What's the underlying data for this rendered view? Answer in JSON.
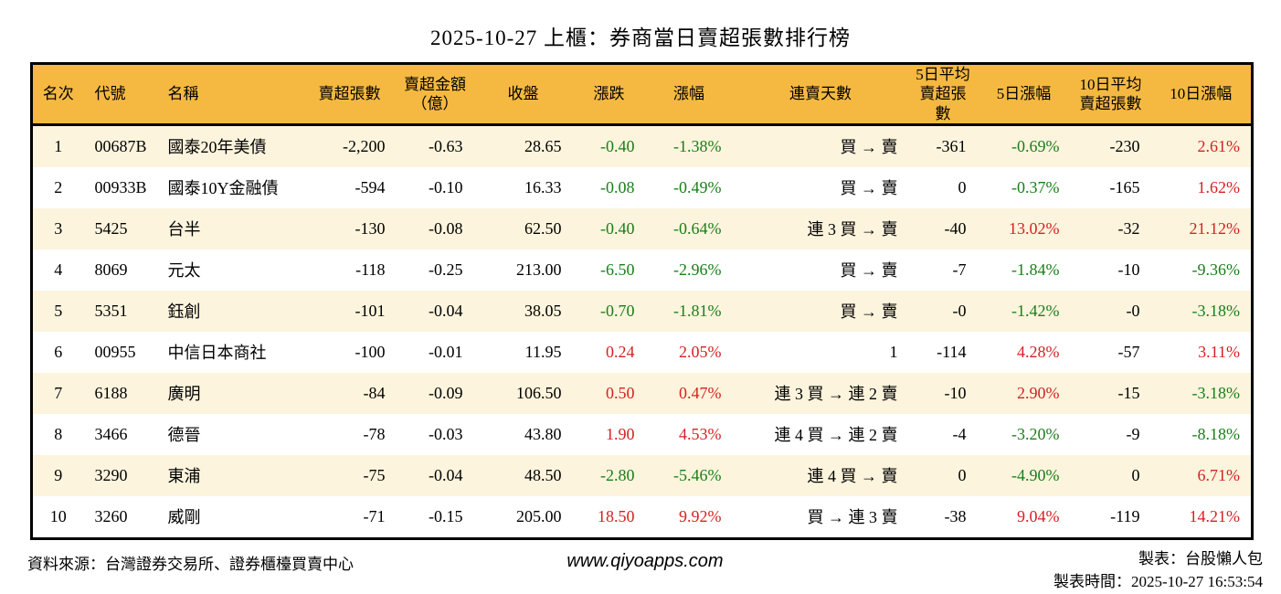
{
  "title": "2025-10-27 上櫃：券商當日賣超張數排行榜",
  "colors": {
    "header_background": "#f5b942",
    "row_stripe": "#fcf4dd",
    "row_plain": "#ffffff",
    "negative_text": "#1a7e1a",
    "positive_text": "#d42222",
    "border": "#000000"
  },
  "table": {
    "columns": [
      {
        "key": "rank",
        "label": "名次",
        "align": "center",
        "header_align": "center",
        "width": 57
      },
      {
        "key": "code",
        "label": "代號",
        "align": "left",
        "header_align": "left",
        "width": 80
      },
      {
        "key": "name",
        "label": "名稱",
        "align": "left",
        "header_align": "left",
        "width": 160
      },
      {
        "key": "sell_volume",
        "label": "賣超張數",
        "align": "right",
        "header_align": "center",
        "width": 102
      },
      {
        "key": "sell_amount",
        "label": "賣超金額\n（億）",
        "align": "right",
        "header_align": "center",
        "width": 85
      },
      {
        "key": "close",
        "label": "收盤",
        "align": "right",
        "header_align": "center",
        "width": 108
      },
      {
        "key": "change",
        "label": "漲跌",
        "align": "right",
        "header_align": "center",
        "width": 80,
        "tone": true
      },
      {
        "key": "change_pct",
        "label": "漲幅",
        "align": "right",
        "header_align": "center",
        "width": 95,
        "tone": true
      },
      {
        "key": "streak",
        "label": "連賣天數",
        "align": "right",
        "header_align": "center",
        "width": 193
      },
      {
        "key": "avg5",
        "label": "5日平均\n賣超張數",
        "align": "right",
        "header_align": "center",
        "width": 75
      },
      {
        "key": "pct5",
        "label": "5日漲幅",
        "align": "right",
        "header_align": "center",
        "width": 102,
        "tone": true
      },
      {
        "key": "avg10",
        "label": "10日平均\n賣超張數",
        "align": "right",
        "header_align": "center",
        "width": 88
      },
      {
        "key": "pct10",
        "label": "10日漲幅",
        "align": "right",
        "header_align": "center",
        "width": 111,
        "tone": true
      }
    ],
    "rows": [
      {
        "rank": "1",
        "code": "00687B",
        "name": "國泰20年美債",
        "sell_volume": "-2,200",
        "sell_amount": "-0.63",
        "close": "28.65",
        "change": "-0.40",
        "change_pct": "-1.38%",
        "streak": "買 → 賣",
        "avg5": "-361",
        "pct5": "-0.69%",
        "avg10": "-230",
        "pct10": "2.61%"
      },
      {
        "rank": "2",
        "code": "00933B",
        "name": "國泰10Y金融債",
        "sell_volume": "-594",
        "sell_amount": "-0.10",
        "close": "16.33",
        "change": "-0.08",
        "change_pct": "-0.49%",
        "streak": "買 → 賣",
        "avg5": "0",
        "pct5": "-0.37%",
        "avg10": "-165",
        "pct10": "1.62%"
      },
      {
        "rank": "3",
        "code": "5425",
        "name": "台半",
        "sell_volume": "-130",
        "sell_amount": "-0.08",
        "close": "62.50",
        "change": "-0.40",
        "change_pct": "-0.64%",
        "streak": "連 3 買 → 賣",
        "avg5": "-40",
        "pct5": "13.02%",
        "avg10": "-32",
        "pct10": "21.12%"
      },
      {
        "rank": "4",
        "code": "8069",
        "name": "元太",
        "sell_volume": "-118",
        "sell_amount": "-0.25",
        "close": "213.00",
        "change": "-6.50",
        "change_pct": "-2.96%",
        "streak": "買 → 賣",
        "avg5": "-7",
        "pct5": "-1.84%",
        "avg10": "-10",
        "pct10": "-9.36%"
      },
      {
        "rank": "5",
        "code": "5351",
        "name": "鈺創",
        "sell_volume": "-101",
        "sell_amount": "-0.04",
        "close": "38.05",
        "change": "-0.70",
        "change_pct": "-1.81%",
        "streak": "買 → 賣",
        "avg5": "-0",
        "pct5": "-1.42%",
        "avg10": "-0",
        "pct10": "-3.18%"
      },
      {
        "rank": "6",
        "code": "00955",
        "name": "中信日本商社",
        "sell_volume": "-100",
        "sell_amount": "-0.01",
        "close": "11.95",
        "change": "0.24",
        "change_pct": "2.05%",
        "streak": "1",
        "avg5": "-114",
        "pct5": "4.28%",
        "avg10": "-57",
        "pct10": "3.11%"
      },
      {
        "rank": "7",
        "code": "6188",
        "name": "廣明",
        "sell_volume": "-84",
        "sell_amount": "-0.09",
        "close": "106.50",
        "change": "0.50",
        "change_pct": "0.47%",
        "streak": "連 3 買 → 連 2 賣",
        "avg5": "-10",
        "pct5": "2.90%",
        "avg10": "-15",
        "pct10": "-3.18%"
      },
      {
        "rank": "8",
        "code": "3466",
        "name": "德晉",
        "sell_volume": "-78",
        "sell_amount": "-0.03",
        "close": "43.80",
        "change": "1.90",
        "change_pct": "4.53%",
        "streak": "連 4 買 → 連 2 賣",
        "avg5": "-4",
        "pct5": "-3.20%",
        "avg10": "-9",
        "pct10": "-8.18%"
      },
      {
        "rank": "9",
        "code": "3290",
        "name": "東浦",
        "sell_volume": "-75",
        "sell_amount": "-0.04",
        "close": "48.50",
        "change": "-2.80",
        "change_pct": "-5.46%",
        "streak": "連 4 買 → 賣",
        "avg5": "0",
        "pct5": "-4.90%",
        "avg10": "0",
        "pct10": "6.71%"
      },
      {
        "rank": "10",
        "code": "3260",
        "name": "威剛",
        "sell_volume": "-71",
        "sell_amount": "-0.15",
        "close": "205.00",
        "change": "18.50",
        "change_pct": "9.92%",
        "streak": "買 → 連 3 賣",
        "avg5": "-38",
        "pct5": "9.04%",
        "avg10": "-119",
        "pct10": "14.21%"
      }
    ]
  },
  "footer": {
    "source": "資料來源：台灣證券交易所、證券櫃檯買賣中心",
    "website": "www.qiyoapps.com",
    "made_by": "製表：台股懶人包",
    "made_time": "製表時間：2025-10-27 16:53:54"
  },
  "chart_data": {
    "type": "table",
    "title": "2025-10-27 上櫃：券商當日賣超張數排行榜",
    "columns": [
      "名次",
      "代號",
      "名稱",
      "賣超張數",
      "賣超金額（億）",
      "收盤",
      "漲跌",
      "漲幅",
      "連賣天數",
      "5日平均賣超張數",
      "5日漲幅",
      "10日平均賣超張數",
      "10日漲幅"
    ],
    "rows": [
      [
        "1",
        "00687B",
        "國泰20年美債",
        "-2,200",
        "-0.63",
        "28.65",
        "-0.40",
        "-1.38%",
        "買 → 賣",
        "-361",
        "-0.69%",
        "-230",
        "2.61%"
      ],
      [
        "2",
        "00933B",
        "國泰10Y金融債",
        "-594",
        "-0.10",
        "16.33",
        "-0.08",
        "-0.49%",
        "買 → 賣",
        "0",
        "-0.37%",
        "-165",
        "1.62%"
      ],
      [
        "3",
        "5425",
        "台半",
        "-130",
        "-0.08",
        "62.50",
        "-0.40",
        "-0.64%",
        "連 3 買 → 賣",
        "-40",
        "13.02%",
        "-32",
        "21.12%"
      ],
      [
        "4",
        "8069",
        "元太",
        "-118",
        "-0.25",
        "213.00",
        "-6.50",
        "-2.96%",
        "買 → 賣",
        "-7",
        "-1.84%",
        "-10",
        "-9.36%"
      ],
      [
        "5",
        "5351",
        "鈺創",
        "-101",
        "-0.04",
        "38.05",
        "-0.70",
        "-1.81%",
        "買 → 賣",
        "-0",
        "-1.42%",
        "-0",
        "-3.18%"
      ],
      [
        "6",
        "00955",
        "中信日本商社",
        "-100",
        "-0.01",
        "11.95",
        "0.24",
        "2.05%",
        "1",
        "-114",
        "4.28%",
        "-57",
        "3.11%"
      ],
      [
        "7",
        "6188",
        "廣明",
        "-84",
        "-0.09",
        "106.50",
        "0.50",
        "0.47%",
        "連 3 買 → 連 2 賣",
        "-10",
        "2.90%",
        "-15",
        "-3.18%"
      ],
      [
        "8",
        "3466",
        "德晉",
        "-78",
        "-0.03",
        "43.80",
        "1.90",
        "4.53%",
        "連 4 買 → 連 2 賣",
        "-4",
        "-3.20%",
        "-9",
        "-8.18%"
      ],
      [
        "9",
        "3290",
        "東浦",
        "-75",
        "-0.04",
        "48.50",
        "-2.80",
        "-5.46%",
        "連 4 買 → 賣",
        "0",
        "-4.90%",
        "0",
        "6.71%"
      ],
      [
        "10",
        "3260",
        "威剛",
        "-71",
        "-0.15",
        "205.00",
        "18.50",
        "9.92%",
        "買 → 連 3 賣",
        "-38",
        "9.04%",
        "-119",
        "14.21%"
      ]
    ],
    "notes": "漲跌/漲幅類欄位：負值以綠色顯示、正值以紅色顯示（台股慣例）"
  }
}
